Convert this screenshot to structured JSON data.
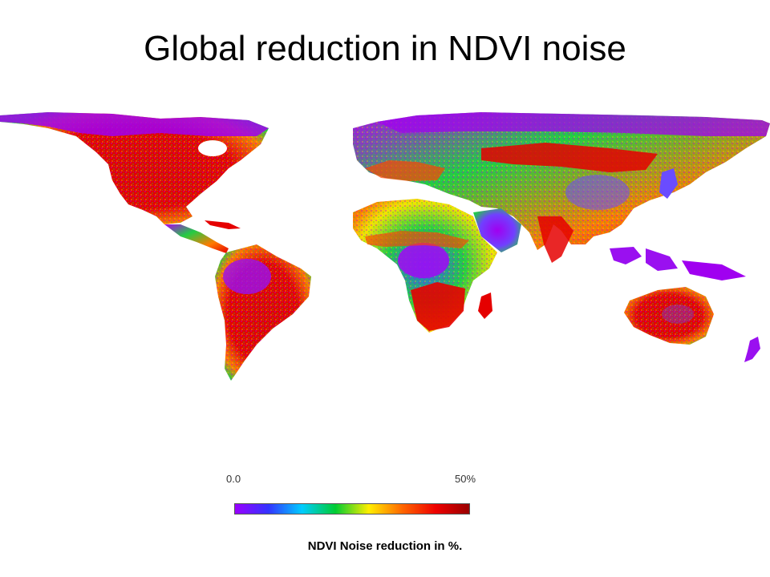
{
  "title": "Global reduction in NDVI noise",
  "legend": {
    "min_label": "0.0",
    "max_label": "50%",
    "caption": "NDVI Noise reduction in %.",
    "colors": [
      "#9900ff",
      "#3333ff",
      "#00ccff",
      "#00cc33",
      "#ffee00",
      "#ff6600",
      "#ee0000",
      "#990000"
    ]
  },
  "map": {
    "projection": "equirectangular world",
    "palette": [
      "#b000f0",
      "#6a4cff",
      "#00c8ff",
      "#22cc44",
      "#f4e400",
      "#ff7a00",
      "#e50000"
    ]
  }
}
